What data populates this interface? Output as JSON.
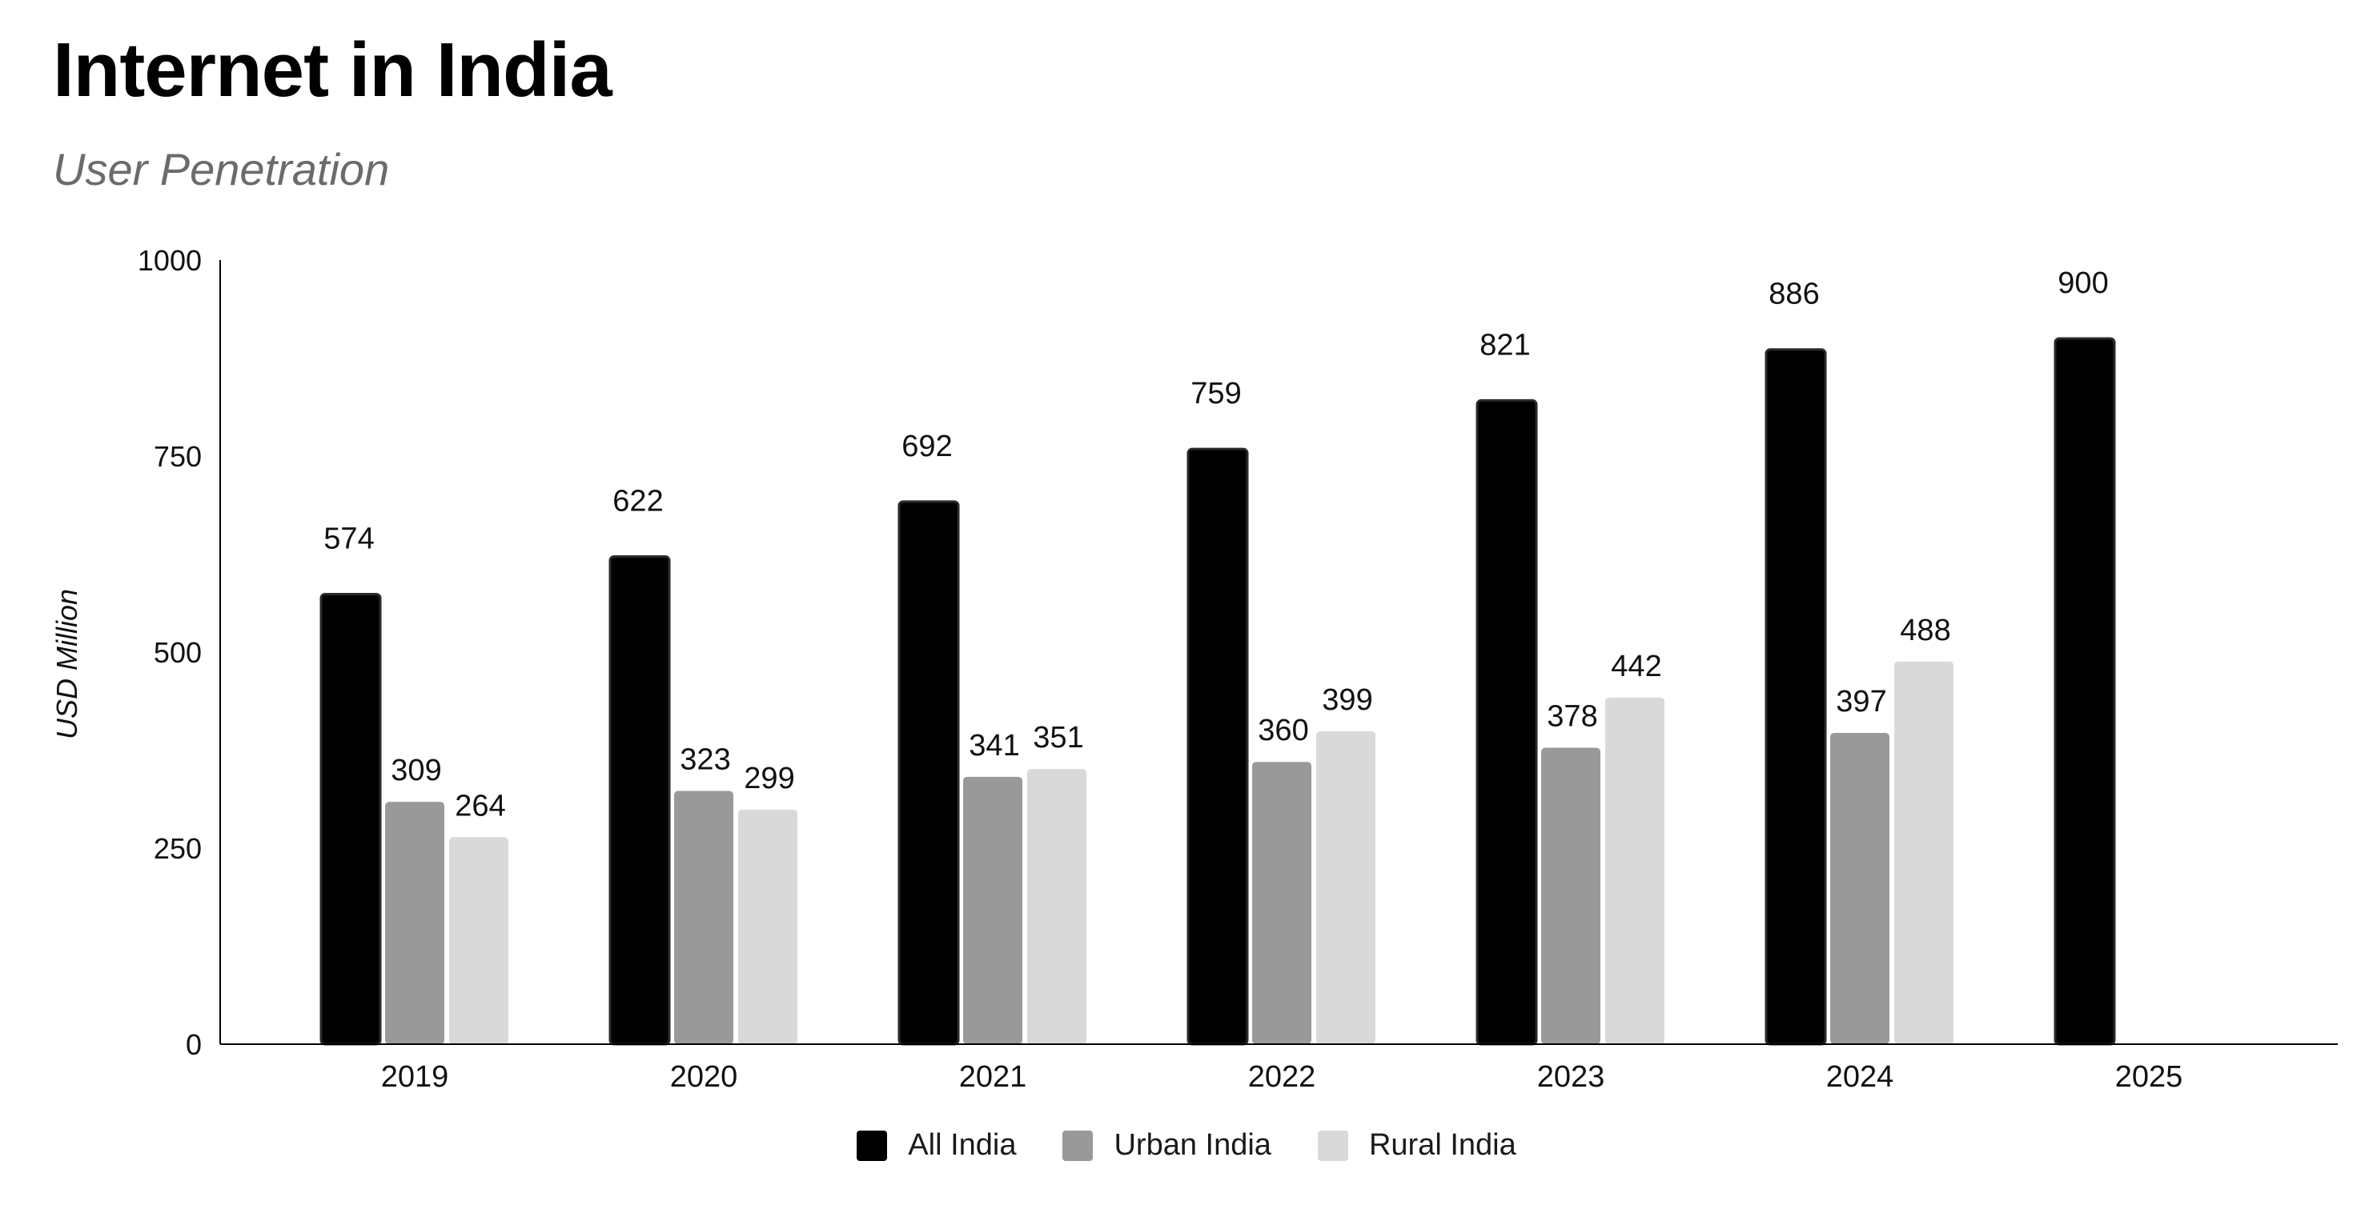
{
  "chart_data": {
    "type": "bar",
    "title": "Internet in India",
    "subtitle": "User Penetration",
    "xlabel": "",
    "ylabel": "USD Million",
    "ylim": [
      0,
      1000
    ],
    "yticks": [
      0,
      250,
      500,
      750,
      1000
    ],
    "grid": false,
    "legend_position": "bottom",
    "categories": [
      "2019",
      "2020",
      "2021",
      "2022",
      "2023",
      "2024",
      "2025"
    ],
    "series": [
      {
        "name": "All India",
        "color": "#000000",
        "values": [
          574,
          622,
          692,
          759,
          821,
          886,
          900
        ]
      },
      {
        "name": "Urban India",
        "color": "#999999",
        "values": [
          309,
          323,
          341,
          360,
          378,
          397,
          null
        ]
      },
      {
        "name": "Rural India",
        "color": "#d9d9d9",
        "values": [
          264,
          299,
          351,
          399,
          442,
          488,
          null
        ]
      }
    ]
  }
}
